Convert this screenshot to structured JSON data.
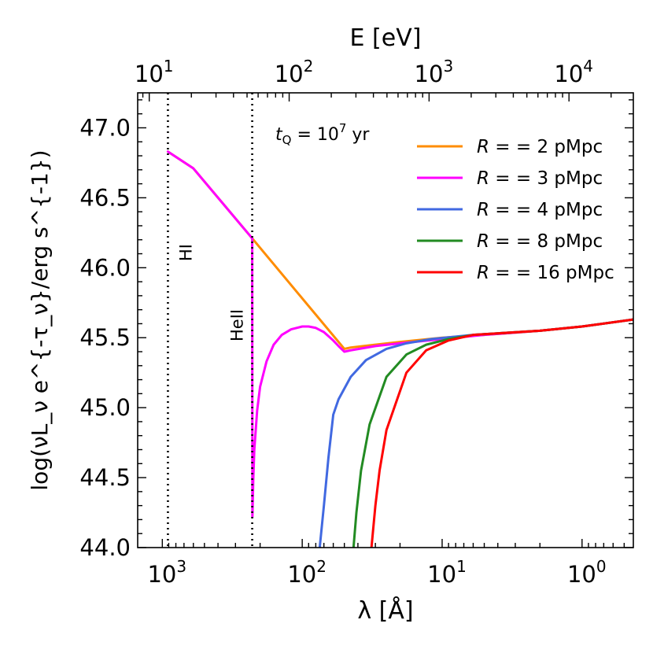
{
  "chart_data": {
    "type": "line",
    "xlabel": "λ [Å]",
    "x_scale": "log",
    "x_reversed": true,
    "xlim": [
      1500,
      0.43
    ],
    "ylabel": "log(νL_ν e^{-τ_ν}/erg s^{-1})",
    "ylim": [
      44.0,
      47.25
    ],
    "x_tick_labels": [
      {
        "value": 1000,
        "base": "10",
        "exp": "3"
      },
      {
        "value": 100,
        "base": "10",
        "exp": "2"
      },
      {
        "value": 10,
        "base": "10",
        "exp": "1"
      },
      {
        "value": 1,
        "base": "10",
        "exp": "0"
      }
    ],
    "y_ticks": [
      44.0,
      44.5,
      45.0,
      45.5,
      46.0,
      46.5,
      47.0
    ],
    "y_tick_labels": [
      "44.0",
      "44.5",
      "45.0",
      "45.5",
      "46.0",
      "46.5",
      "47.0"
    ],
    "top_axis": {
      "label": "E [eV]",
      "scale": "log",
      "tick_labels": [
        {
          "value": 10,
          "base": "10",
          "exp": "1"
        },
        {
          "value": 100,
          "base": "10",
          "exp": "2"
        },
        {
          "value": 1000,
          "base": "10",
          "exp": "3"
        },
        {
          "value": 10000,
          "base": "10",
          "exp": "4"
        }
      ]
    },
    "vlines": [
      {
        "x": 911.8,
        "label": "HI"
      },
      {
        "x": 227.8,
        "label": "HeII"
      }
    ],
    "annotation": {
      "text_main": "t",
      "text_sub": "Q",
      "text_eq": " = 10",
      "text_exp": "7",
      "text_unit": " yr"
    },
    "legend_position": "top-right",
    "series": [
      {
        "name": "R = 2 pMpc",
        "prefix": "R = ",
        "value": "2",
        "unit": " pMpc",
        "color": "#ff8c00",
        "x": [
          911.8,
          600,
          227.8,
          50,
          45,
          30,
          20,
          10,
          5,
          2,
          1,
          0.43
        ],
        "y": [
          46.83,
          46.71,
          46.21,
          45.42,
          45.43,
          45.45,
          45.47,
          45.5,
          45.52,
          45.55,
          45.58,
          45.63
        ]
      },
      {
        "name": "R = 3 pMpc",
        "prefix": "R = ",
        "value": "3",
        "unit": " pMpc",
        "color": "#ff00ff",
        "x": [
          911.8,
          600,
          227.8,
          227.0,
          224,
          220,
          210,
          200,
          180,
          160,
          140,
          120,
          100,
          90,
          80,
          70,
          60,
          55,
          50,
          45,
          30,
          20,
          10,
          5,
          2,
          1,
          0.43
        ],
        "y": [
          46.83,
          46.71,
          46.21,
          44.22,
          44.48,
          44.7,
          44.98,
          45.15,
          45.33,
          45.45,
          45.52,
          45.56,
          45.58,
          45.58,
          45.57,
          45.54,
          45.48,
          45.44,
          45.4,
          45.41,
          45.44,
          45.46,
          45.49,
          45.52,
          45.55,
          45.58,
          45.63
        ]
      },
      {
        "name": "R = 4 pMpc",
        "prefix": "R = ",
        "value": "4",
        "unit": " pMpc",
        "color": "#4169e1",
        "x": [
          75,
          70,
          65,
          60,
          55,
          45,
          35,
          25,
          18,
          12,
          6,
          2,
          1,
          0.43
        ],
        "y": [
          44.0,
          44.3,
          44.64,
          44.95,
          45.06,
          45.22,
          45.34,
          45.42,
          45.46,
          45.49,
          45.52,
          45.55,
          45.58,
          45.63
        ]
      },
      {
        "name": "R = 8 pMpc",
        "prefix": "R = ",
        "value": "8",
        "unit": " pMpc",
        "color": "#228b22",
        "x": [
          43,
          41,
          38,
          33,
          25,
          18,
          13,
          9,
          6,
          2,
          1,
          0.43
        ],
        "y": [
          44.0,
          44.25,
          44.55,
          44.88,
          45.22,
          45.38,
          45.45,
          45.49,
          45.52,
          45.55,
          45.58,
          45.63
        ]
      },
      {
        "name": "R = 16 pMpc",
        "prefix": "R = ",
        "value": "16",
        "unit": " pMpc",
        "color": "#ff0000",
        "x": [
          32,
          30,
          28,
          25,
          18,
          13,
          9,
          6,
          2,
          1,
          0.43
        ],
        "y": [
          44.0,
          44.3,
          44.55,
          44.84,
          45.25,
          45.41,
          45.48,
          45.52,
          45.55,
          45.58,
          45.63
        ]
      }
    ]
  }
}
